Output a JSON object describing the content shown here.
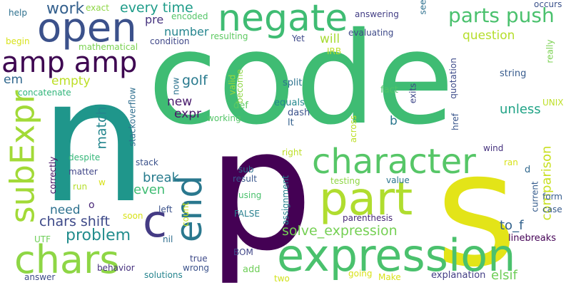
{
  "words": [
    {
      "text": "code",
      "color": "#3fbc73"
    },
    {
      "text": "n",
      "color": "#1f968b"
    },
    {
      "text": "p",
      "color": "#440154"
    },
    {
      "text": "s",
      "color": "#e3e418"
    },
    {
      "text": "expression",
      "color": "#4ac16d"
    },
    {
      "text": "open",
      "color": "#3b518b"
    },
    {
      "text": "negate",
      "color": "#3fbc73"
    },
    {
      "text": "part",
      "color": "#b0dd2f"
    },
    {
      "text": "character",
      "color": "#56c667"
    },
    {
      "text": "subExpr",
      "color": "#a2da37"
    },
    {
      "text": "chars",
      "color": "#8ed645"
    },
    {
      "text": "amp amp",
      "color": "#3e0751"
    },
    {
      "text": "end",
      "color": "#2a788e"
    },
    {
      "text": "c",
      "color": "#443b84"
    },
    {
      "text": "parts push",
      "color": "#4ac16d"
    },
    {
      "text": "solve_expression",
      "color": "#75d054"
    },
    {
      "text": "problem",
      "color": "#228d8d"
    },
    {
      "text": "chars shift",
      "color": "#3e4a89"
    },
    {
      "text": "every time",
      "color": "#1e9c89"
    },
    {
      "text": "work",
      "color": "#34608d"
    },
    {
      "text": "question",
      "color": "#b5de2b"
    },
    {
      "text": "empty",
      "color": "#bddf26"
    },
    {
      "text": "em",
      "color": "#31688e"
    },
    {
      "text": "golf",
      "color": "#297a8e"
    },
    {
      "text": "number",
      "color": "#25858e"
    },
    {
      "text": "match",
      "color": "#24868e"
    },
    {
      "text": "break",
      "color": "#287c8e"
    },
    {
      "text": "even",
      "color": "#3fbc73"
    },
    {
      "text": "need",
      "color": "#2d718e"
    },
    {
      "text": "unless",
      "color": "#20a386"
    },
    {
      "text": "comparison",
      "color": "#c8e020"
    },
    {
      "text": "to_f",
      "color": "#33638d"
    },
    {
      "text": "elsif",
      "color": "#6ece58"
    },
    {
      "text": "new",
      "color": "#481a6c"
    },
    {
      "text": "expr",
      "color": "#481769"
    },
    {
      "text": "pre",
      "color": "#46337f"
    },
    {
      "text": "will",
      "color": "#a8db34"
    },
    {
      "text": "b",
      "color": "#2a778e"
    },
    {
      "text": "help",
      "color": "#2d708e"
    },
    {
      "text": "exact",
      "color": "#8ed645"
    },
    {
      "text": "encoded",
      "color": "#54c568"
    },
    {
      "text": "answering",
      "color": "#433e85"
    },
    {
      "text": "see",
      "color": "#2d708e"
    },
    {
      "text": "occurs",
      "color": "#3b528b"
    },
    {
      "text": "mathematical",
      "color": "#7ad151"
    },
    {
      "text": "condition",
      "color": "#3f4788"
    },
    {
      "text": "Yet",
      "color": "#3e4989"
    },
    {
      "text": "evaluating",
      "color": "#3e4a89"
    },
    {
      "text": "resulting",
      "color": "#5ec962"
    },
    {
      "text": "IRB",
      "color": "#bddf26"
    },
    {
      "text": "begin",
      "color": "#d8e219"
    },
    {
      "text": "really",
      "color": "#7ad151"
    },
    {
      "text": "concatenate",
      "color": "#31b57b"
    },
    {
      "text": "split",
      "color": "#2c728e"
    },
    {
      "text": "fact",
      "color": "#50c46a"
    },
    {
      "text": "exits",
      "color": "#3f4889"
    },
    {
      "text": "quotation",
      "color": "#3e4c8a"
    },
    {
      "text": "string",
      "color": "#375b8d"
    },
    {
      "text": "stackoverflow",
      "color": "#2e6e8e"
    },
    {
      "text": "now",
      "color": "#2c738e"
    },
    {
      "text": "valid",
      "color": "#9dd93b"
    },
    {
      "text": "become",
      "color": "#8ed645"
    },
    {
      "text": "def",
      "color": "#5ec962"
    },
    {
      "text": "equals",
      "color": "#23898e"
    },
    {
      "text": "dash",
      "color": "#3b528b"
    },
    {
      "text": "lt",
      "color": "#34618d"
    },
    {
      "text": "working",
      "color": "#54c568"
    },
    {
      "text": "href",
      "color": "#39568c"
    },
    {
      "text": "UNIX",
      "color": "#bddf26"
    },
    {
      "text": "across",
      "color": "#bddf26"
    },
    {
      "text": "despite",
      "color": "#35b779"
    },
    {
      "text": "stack",
      "color": "#3b528b"
    },
    {
      "text": "wind",
      "color": "#46327e"
    },
    {
      "text": "right",
      "color": "#bddf26"
    },
    {
      "text": "ran",
      "color": "#d8e219"
    },
    {
      "text": "d",
      "color": "#31688e"
    },
    {
      "text": "matter",
      "color": "#404688"
    },
    {
      "text": "correctly",
      "color": "#471063"
    },
    {
      "text": "w",
      "color": "#d8e219"
    },
    {
      "text": "sub",
      "color": "#2c728e"
    },
    {
      "text": "result",
      "color": "#39568c"
    },
    {
      "text": "value",
      "color": "#2b758e"
    },
    {
      "text": "testing",
      "color": "#8ed645"
    },
    {
      "text": "current",
      "color": "#365c8d"
    },
    {
      "text": "form",
      "color": "#365d8d"
    },
    {
      "text": "assignment",
      "color": "#26828e"
    },
    {
      "text": "run",
      "color": "#b5de2b"
    },
    {
      "text": "o",
      "color": "#482677"
    },
    {
      "text": "using",
      "color": "#4ac16d"
    },
    {
      "text": "case",
      "color": "#375a8c"
    },
    {
      "text": "left",
      "color": "#3b528b"
    },
    {
      "text": "soon",
      "color": "#d8e219"
    },
    {
      "text": "count",
      "color": "#c8e020"
    },
    {
      "text": "FALSE",
      "color": "#277f8e"
    },
    {
      "text": "parenthesis",
      "color": "#482878"
    },
    {
      "text": "linebreaks",
      "color": "#440256"
    },
    {
      "text": "UTF",
      "color": "#6ece58"
    },
    {
      "text": "nil",
      "color": "#2e6e8e"
    },
    {
      "text": "true",
      "color": "#3e4a89"
    },
    {
      "text": "wrong",
      "color": "#3b528b"
    },
    {
      "text": "BOM",
      "color": "#404688"
    },
    {
      "text": "add",
      "color": "#6ece58"
    },
    {
      "text": "answer",
      "color": "#3e4a89"
    },
    {
      "text": "behavior",
      "color": "#46317e"
    },
    {
      "text": "solutions",
      "color": "#25848e"
    },
    {
      "text": "two",
      "color": "#d2e21b"
    },
    {
      "text": "going",
      "color": "#d8e219"
    },
    {
      "text": "Make",
      "color": "#d8e219"
    },
    {
      "text": "explanation",
      "color": "#433e85"
    }
  ]
}
